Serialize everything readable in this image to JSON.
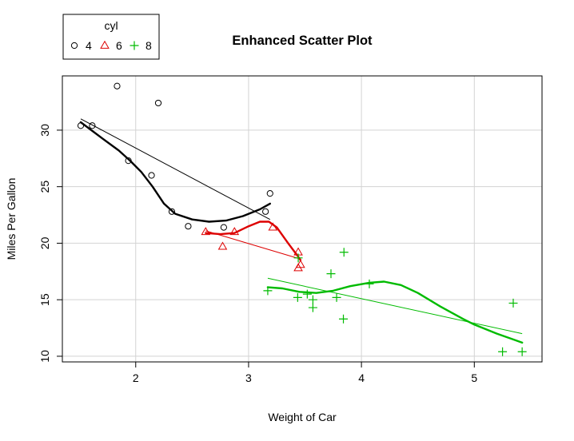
{
  "chart_data": {
    "type": "scatter",
    "title": "Enhanced Scatter Plot",
    "xlabel": "Weight of Car",
    "ylabel": "Miles Per Gallon",
    "xlim": [
      1.35,
      5.6
    ],
    "ylim": [
      9.5,
      34.8
    ],
    "xticks": [
      2,
      3,
      4,
      5
    ],
    "yticks": [
      10,
      15,
      20,
      25,
      30
    ],
    "grid": true,
    "legend": {
      "title": "cyl",
      "position": "top-left",
      "entries": [
        "4",
        "6",
        "8"
      ]
    },
    "series": [
      {
        "name": "4",
        "marker": "circle",
        "color": "#000000",
        "points": [
          [
            1.513,
            30.4
          ],
          [
            1.615,
            30.4
          ],
          [
            1.835,
            33.9
          ],
          [
            1.935,
            27.3
          ],
          [
            2.14,
            26.0
          ],
          [
            2.2,
            32.4
          ],
          [
            2.32,
            22.8
          ],
          [
            2.465,
            21.5
          ],
          [
            2.78,
            21.4
          ],
          [
            3.15,
            22.8
          ],
          [
            3.19,
            24.4
          ]
        ],
        "fit_line": [
          [
            1.513,
            31.0
          ],
          [
            3.19,
            22.1
          ]
        ],
        "smooth": [
          [
            1.513,
            30.7
          ],
          [
            1.7,
            29.3
          ],
          [
            1.85,
            28.2
          ],
          [
            1.95,
            27.3
          ],
          [
            2.05,
            26.3
          ],
          [
            2.15,
            25.0
          ],
          [
            2.25,
            23.5
          ],
          [
            2.35,
            22.6
          ],
          [
            2.5,
            22.1
          ],
          [
            2.65,
            21.9
          ],
          [
            2.8,
            22.0
          ],
          [
            2.95,
            22.4
          ],
          [
            3.1,
            23.0
          ],
          [
            3.19,
            23.5
          ]
        ]
      },
      {
        "name": "6",
        "marker": "triangle",
        "color": "#dd0000",
        "points": [
          [
            2.62,
            21.0
          ],
          [
            2.77,
            19.7
          ],
          [
            2.875,
            21.0
          ],
          [
            3.215,
            21.4
          ],
          [
            3.44,
            19.2
          ],
          [
            3.44,
            17.8
          ],
          [
            3.46,
            18.1
          ]
        ],
        "fit_line": [
          [
            2.62,
            21.1
          ],
          [
            3.46,
            18.6
          ]
        ],
        "smooth": [
          [
            2.62,
            20.9
          ],
          [
            2.75,
            20.8
          ],
          [
            2.875,
            20.9
          ],
          [
            3.0,
            21.5
          ],
          [
            3.1,
            21.9
          ],
          [
            3.18,
            21.9
          ],
          [
            3.25,
            21.4
          ],
          [
            3.35,
            20.0
          ],
          [
            3.44,
            18.8
          ],
          [
            3.46,
            18.5
          ]
        ]
      },
      {
        "name": "8",
        "marker": "plus",
        "color": "#00bb00",
        "points": [
          [
            3.17,
            15.8
          ],
          [
            3.435,
            15.2
          ],
          [
            3.44,
            18.7
          ],
          [
            3.52,
            15.5
          ],
          [
            3.57,
            15.0
          ],
          [
            3.57,
            14.3
          ],
          [
            3.73,
            17.3
          ],
          [
            3.78,
            15.2
          ],
          [
            3.84,
            13.3
          ],
          [
            3.845,
            19.2
          ],
          [
            4.07,
            16.4
          ],
          [
            5.25,
            10.4
          ],
          [
            5.345,
            14.7
          ],
          [
            5.424,
            10.4
          ]
        ],
        "fit_line": [
          [
            3.17,
            16.9
          ],
          [
            5.424,
            12.0
          ]
        ],
        "smooth": [
          [
            3.17,
            16.1
          ],
          [
            3.3,
            16.0
          ],
          [
            3.45,
            15.7
          ],
          [
            3.6,
            15.6
          ],
          [
            3.75,
            15.8
          ],
          [
            3.9,
            16.2
          ],
          [
            4.07,
            16.5
          ],
          [
            4.2,
            16.6
          ],
          [
            4.35,
            16.3
          ],
          [
            4.5,
            15.6
          ],
          [
            4.7,
            14.4
          ],
          [
            4.9,
            13.3
          ],
          [
            5.0,
            12.8
          ],
          [
            5.2,
            12.0
          ],
          [
            5.424,
            11.2
          ]
        ]
      }
    ]
  }
}
